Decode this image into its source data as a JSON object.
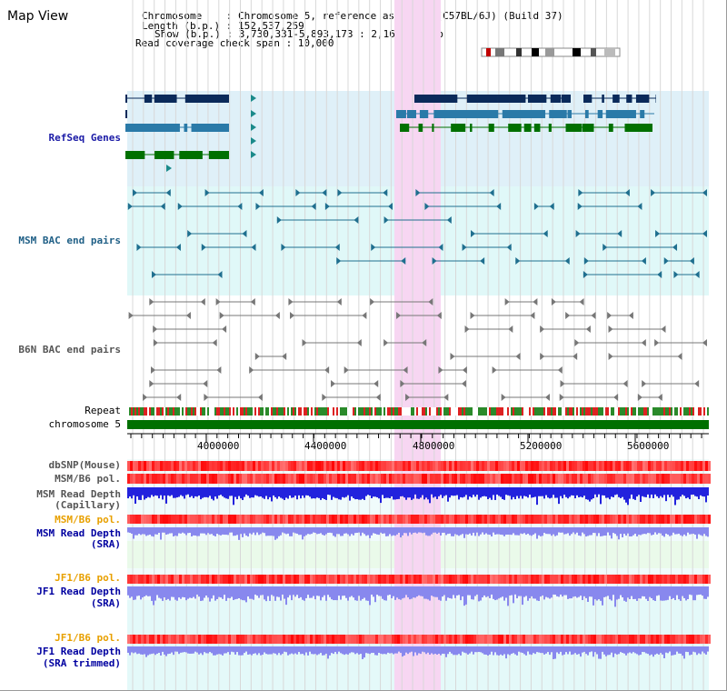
{
  "page": {
    "title": "Map View"
  },
  "header": {
    "chromosome_line": "Chromosome    : Chromosome 5, reference assembly (C57BL/6J) (Build 37)",
    "length_line": "Length (b.p.) : 152,537,259",
    "show_line": "Show (b.p.) : 3,730,331-5,893,173 : 2,162,843 bp",
    "coverage_line": "Read coverage check span : 10,000"
  },
  "tracks": {
    "refseq": "RefSeq Genes",
    "msm_bac": "MSM BAC end pairs",
    "b6n_bac": "B6N BAC end pairs",
    "repeat": "Repeat",
    "chromosome": "chromosome 5",
    "dbsnp": "dbSNP(Mouse)",
    "msm_b6_pol": "MSM/B6 pol.",
    "msm_read_depth_cap": "MSM Read Depth",
    "msm_read_depth_cap_sub": "(Capillary)",
    "msm_b6_pol_2": "MSM/B6 pol.",
    "msm_read_depth_sra": "MSM Read Depth",
    "msm_read_depth_sra_sub": "(SRA)",
    "jf1_b6_pol": "JF1/B6 pol.",
    "jf1_read_depth_sra": "JF1 Read Depth",
    "jf1_read_depth_sra_sub": "(SRA)",
    "jf1_b6_pol_2": "JF1/B6 pol.",
    "jf1_read_depth_trim": "JF1 Read Depth",
    "jf1_read_depth_trim_sub": "(SRA trimmed)"
  },
  "ruler": {
    "ticks": [
      "4000000",
      "4400000",
      "4800000",
      "5200000",
      "5600000"
    ]
  },
  "colors": {
    "refseq_bg": "#dff0f8",
    "msm_bg": "#e0f8f8",
    "highlight": "#f7d6f2",
    "chromosome": "#007000",
    "depth_blue": "#2222dd",
    "depth_light": "#8888ee",
    "pol_red": "#f03030"
  }
}
